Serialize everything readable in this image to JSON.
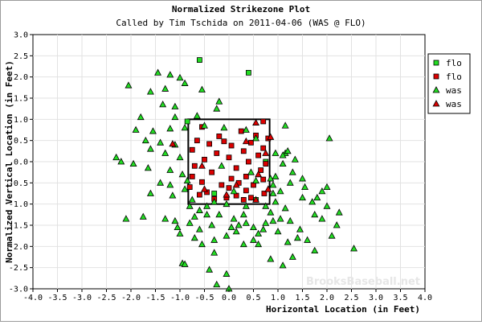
{
  "chart_data": {
    "type": "scatter",
    "title": "Normalized Strikezone Plot",
    "subtitle": "Called by Tim Tschida on 2011-04-06 (WAS @ FLO)",
    "xlabel": "Horizontal Location (in Feet)",
    "ylabel": "Normalized Vertical Location (in Feet)",
    "xlim": [
      -4.0,
      4.0
    ],
    "ylim": [
      -3.0,
      3.0
    ],
    "xticks": [
      "-4.0",
      "-3.5",
      "-3.0",
      "-2.5",
      "-2.0",
      "-1.5",
      "-1.0",
      "-0.5",
      "0.0",
      "0.5",
      "1.0",
      "1.5",
      "2.0",
      "2.5",
      "3.0",
      "3.5",
      "4.0"
    ],
    "yticks": [
      "3.0",
      "2.5",
      "2.0",
      "1.5",
      "1.0",
      "0.5",
      "0.0",
      "-0.5",
      "-1.0",
      "-1.5",
      "-2.0",
      "-2.5",
      "-3.0"
    ],
    "grid": true,
    "legend_position": "top-right",
    "strike_zone": {
      "x": [
        -0.83,
        0.83
      ],
      "y": [
        -1.0,
        1.0
      ]
    },
    "watermark": "BrooksBaseball.net",
    "series": [
      {
        "name": "flo",
        "marker": "square",
        "color": "#22dd22",
        "points": [
          [
            -0.6,
            2.4
          ],
          [
            0.4,
            2.1
          ],
          [
            -0.85,
            0.95
          ],
          [
            0.75,
            0.0
          ],
          [
            -0.3,
            -0.75
          ],
          [
            0.55,
            -0.9
          ]
        ]
      },
      {
        "name": "flo",
        "marker": "square",
        "color": "#dd0000",
        "points": [
          [
            0.7,
            0.95
          ],
          [
            -0.55,
            0.82
          ],
          [
            0.25,
            0.72
          ],
          [
            0.55,
            0.62
          ],
          [
            -0.2,
            0.6
          ],
          [
            0.8,
            0.55
          ],
          [
            -0.65,
            0.5
          ],
          [
            -0.1,
            0.48
          ],
          [
            0.45,
            0.45
          ],
          [
            -0.4,
            0.42
          ],
          [
            0.05,
            0.38
          ],
          [
            0.7,
            0.32
          ],
          [
            -0.75,
            0.28
          ],
          [
            0.3,
            0.25
          ],
          [
            -0.25,
            0.2
          ],
          [
            0.6,
            0.15
          ],
          [
            0.0,
            0.1
          ],
          [
            -0.5,
            0.05
          ],
          [
            0.4,
            0.0
          ],
          [
            0.75,
            -0.05
          ],
          [
            -0.7,
            -0.1
          ],
          [
            0.15,
            -0.15
          ],
          [
            0.65,
            -0.2
          ],
          [
            -0.35,
            -0.25
          ],
          [
            -0.75,
            -0.35
          ],
          [
            0.35,
            -0.35
          ],
          [
            0.05,
            -0.4
          ],
          [
            0.7,
            -0.42
          ],
          [
            -0.55,
            -0.48
          ],
          [
            0.2,
            -0.5
          ],
          [
            -0.15,
            -0.55
          ],
          [
            0.5,
            -0.55
          ],
          [
            -0.8,
            -0.6
          ],
          [
            0.0,
            -0.62
          ],
          [
            0.35,
            -0.68
          ],
          [
            -0.45,
            -0.72
          ],
          [
            0.72,
            -0.75
          ],
          [
            -0.6,
            -0.78
          ],
          [
            0.15,
            -0.8
          ],
          [
            -0.05,
            -0.85
          ],
          [
            0.45,
            -0.85
          ],
          [
            -0.3,
            -0.88
          ],
          [
            0.3,
            -0.9
          ]
        ]
      },
      {
        "name": "was",
        "marker": "triangle",
        "color": "#22dd22",
        "points": [
          [
            -2.05,
            1.8
          ],
          [
            -1.45,
            2.1
          ],
          [
            -1.2,
            2.05
          ],
          [
            -1.3,
            1.72
          ],
          [
            -1.0,
            1.98
          ],
          [
            -0.9,
            1.85
          ],
          [
            -0.55,
            1.7
          ],
          [
            -1.6,
            1.65
          ],
          [
            -1.35,
            1.35
          ],
          [
            -1.1,
            1.3
          ],
          [
            -0.2,
            1.42
          ],
          [
            -1.8,
            1.05
          ],
          [
            -1.1,
            1.05
          ],
          [
            -0.65,
            1.08
          ],
          [
            -0.25,
            1.25
          ],
          [
            -1.9,
            0.75
          ],
          [
            -1.55,
            0.72
          ],
          [
            -1.2,
            0.78
          ],
          [
            -0.9,
            0.8
          ],
          [
            -0.5,
            0.85
          ],
          [
            -1.7,
            0.5
          ],
          [
            -1.4,
            0.45
          ],
          [
            -1.1,
            0.4
          ],
          [
            -1.6,
            0.3
          ],
          [
            -1.3,
            0.2
          ],
          [
            -1.0,
            0.1
          ],
          [
            -2.3,
            0.1
          ],
          [
            -2.2,
            0.0
          ],
          [
            -1.95,
            -0.05
          ],
          [
            -1.65,
            -0.15
          ],
          [
            -1.2,
            -0.2
          ],
          [
            -0.95,
            -0.3
          ],
          [
            -0.85,
            -0.45
          ],
          [
            -1.4,
            -0.5
          ],
          [
            -1.2,
            -0.55
          ],
          [
            -0.9,
            -0.65
          ],
          [
            -1.6,
            -0.75
          ],
          [
            -1.15,
            -0.8
          ],
          [
            -0.75,
            -0.9
          ],
          [
            -2.1,
            -1.35
          ],
          [
            -1.75,
            -1.3
          ],
          [
            -1.3,
            -1.35
          ],
          [
            -1.1,
            -1.4
          ],
          [
            -0.7,
            -1.3
          ],
          [
            -0.45,
            -1.25
          ],
          [
            -1.05,
            -1.55
          ],
          [
            -0.8,
            -1.45
          ],
          [
            -0.6,
            -1.6
          ],
          [
            -0.35,
            -1.5
          ],
          [
            -1.0,
            -1.7
          ],
          [
            -0.7,
            -1.8
          ],
          [
            -0.55,
            -1.95
          ],
          [
            -0.3,
            -1.85
          ],
          [
            -0.05,
            -1.75
          ],
          [
            -0.95,
            -2.4
          ],
          [
            -0.9,
            -2.42
          ],
          [
            -0.4,
            -2.55
          ],
          [
            -0.3,
            -2.15
          ],
          [
            -0.05,
            -2.65
          ],
          [
            -0.25,
            -2.9
          ],
          [
            0.0,
            -3.0
          ],
          [
            0.15,
            -1.65
          ],
          [
            0.3,
            -1.95
          ],
          [
            0.5,
            -1.85
          ],
          [
            0.6,
            -1.7
          ],
          [
            0.75,
            -1.45
          ],
          [
            0.9,
            -1.4
          ],
          [
            0.7,
            -1.6
          ],
          [
            0.5,
            -1.55
          ],
          [
            0.2,
            -1.5
          ],
          [
            0.1,
            -1.35
          ],
          [
            0.35,
            -1.45
          ],
          [
            0.85,
            -1.2
          ],
          [
            1.05,
            -1.35
          ],
          [
            1.25,
            -1.4
          ],
          [
            1.45,
            -1.6
          ],
          [
            1.4,
            -1.8
          ],
          [
            1.75,
            -2.1
          ],
          [
            1.0,
            -1.65
          ],
          [
            1.2,
            -1.9
          ],
          [
            1.6,
            -1.85
          ],
          [
            2.1,
            -1.75
          ],
          [
            2.55,
            -2.05
          ],
          [
            1.1,
            -2.45
          ],
          [
            1.3,
            -2.25
          ],
          [
            0.85,
            -2.3
          ],
          [
            0.6,
            -1.95
          ],
          [
            2.2,
            -1.5
          ],
          [
            1.75,
            -1.25
          ],
          [
            1.9,
            -1.35
          ],
          [
            2.25,
            -1.2
          ],
          [
            2.0,
            -1.05
          ],
          [
            1.7,
            -0.95
          ],
          [
            1.5,
            -0.85
          ],
          [
            1.8,
            -0.85
          ],
          [
            1.9,
            -0.7
          ],
          [
            2.0,
            -0.6
          ],
          [
            1.55,
            -0.6
          ],
          [
            1.5,
            -0.4
          ],
          [
            1.25,
            -0.5
          ],
          [
            1.05,
            -0.7
          ],
          [
            0.9,
            -0.55
          ],
          [
            0.95,
            -0.35
          ],
          [
            1.3,
            -0.25
          ],
          [
            1.1,
            -0.05
          ],
          [
            1.35,
            0.05
          ],
          [
            1.15,
            0.2
          ],
          [
            0.95,
            0.2
          ],
          [
            1.1,
            0.15
          ],
          [
            1.2,
            0.25
          ],
          [
            2.05,
            0.55
          ],
          [
            1.15,
            0.85
          ],
          [
            0.55,
            0.55
          ],
          [
            0.35,
            0.75
          ],
          [
            -0.1,
            0.8
          ],
          [
            -0.15,
            -0.1
          ],
          [
            0.45,
            -0.25
          ],
          [
            0.1,
            -0.7
          ],
          [
            0.55,
            -0.45
          ],
          [
            0.85,
            -0.4
          ],
          [
            0.9,
            -0.75
          ],
          [
            0.95,
            -0.95
          ],
          [
            -0.45,
            -1.05
          ],
          [
            -0.3,
            -0.95
          ],
          [
            -0.8,
            -1.05
          ],
          [
            -0.05,
            -1.0
          ],
          [
            0.35,
            -1.05
          ],
          [
            0.75,
            -1.05
          ],
          [
            -0.6,
            -1.15
          ],
          [
            -0.2,
            -1.25
          ],
          [
            0.3,
            -1.25
          ],
          [
            1.15,
            -1.1
          ],
          [
            0.05,
            -1.55
          ]
        ]
      },
      {
        "name": "was",
        "marker": "triangle",
        "color": "#dd0000",
        "points": [
          [
            0.55,
            0.92
          ],
          [
            0.85,
            0.58
          ],
          [
            -1.15,
            0.42
          ],
          [
            0.75,
            0.2
          ],
          [
            -0.55,
            -0.1
          ],
          [
            0.6,
            -0.3
          ],
          [
            0.15,
            -0.55
          ],
          [
            0.8,
            -0.65
          ],
          [
            -0.05,
            -0.78
          ],
          [
            0.55,
            -0.9
          ],
          [
            -0.5,
            -0.65
          ],
          [
            0.35,
            0.48
          ]
        ]
      }
    ]
  }
}
